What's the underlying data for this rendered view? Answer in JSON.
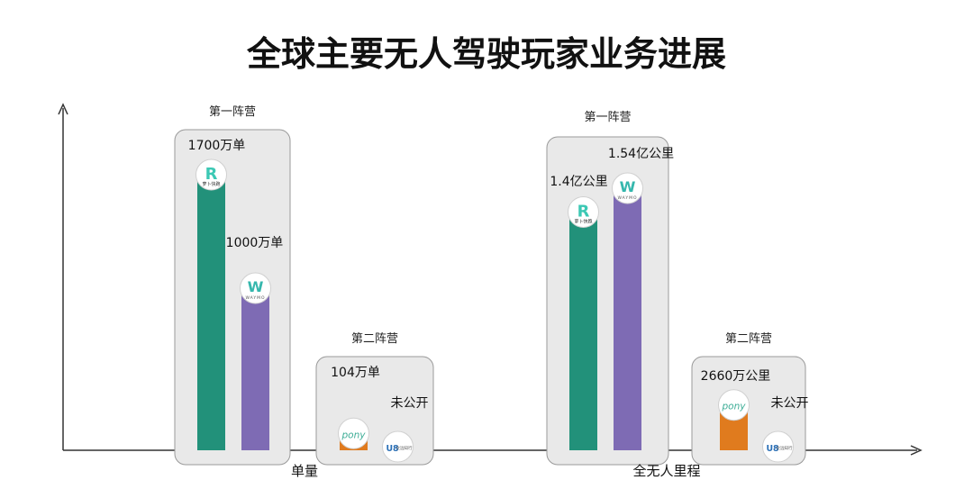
{
  "title": "全球主要无人驾驶玩家业务进展",
  "colors": {
    "green": "#22917a",
    "purple": "#7e6bb4",
    "orange": "#e07b1e",
    "blue": "#2a6fb6",
    "box_fill": "#e9e9e9",
    "box_stroke": "#9a9a9a",
    "axis": "#333333"
  },
  "chart_data": {
    "type": "bar",
    "title": "全球主要无人驾驶玩家业务进展",
    "categories": [
      "单量",
      "全无人里程"
    ],
    "groups": [
      {
        "category": "单量",
        "tiers": [
          {
            "label": "第一阵营",
            "bars": [
              {
                "company_icon": "radish-logo",
                "logo_text": "萝卜快跑",
                "value": 1700,
                "unit": "万单",
                "label": "1700万单",
                "color": "green"
              },
              {
                "company_icon": "waymo-logo",
                "logo_text": "WAYMO",
                "value": 1000,
                "unit": "万单",
                "label": "1000万单",
                "color": "purple"
              }
            ]
          },
          {
            "label": "第二阵营",
            "bars": [
              {
                "company_icon": "pony-logo",
                "logo_text": "pony",
                "value": 104,
                "unit": "万单",
                "label": "104万单",
                "color": "orange"
              },
              {
                "company_icon": "weride-logo",
                "logo_text": "文远知行",
                "value": null,
                "label": "未公开",
                "color": "blue"
              }
            ]
          }
        ]
      },
      {
        "category": "全无人里程",
        "tiers": [
          {
            "label": "第一阵营",
            "bars": [
              {
                "company_icon": "radish-logo",
                "logo_text": "萝卜快跑",
                "value": 14000,
                "unit": "万公里",
                "label": "1.4亿公里",
                "color": "green"
              },
              {
                "company_icon": "waymo-logo",
                "logo_text": "WAYMO",
                "value": 15400,
                "unit": "万公里",
                "label": "1.54亿公里",
                "color": "purple"
              }
            ]
          },
          {
            "label": "第二阵营",
            "bars": [
              {
                "company_icon": "pony-logo",
                "logo_text": "pony",
                "value": 2660,
                "unit": "万公里",
                "label": "2660万公里",
                "color": "orange"
              },
              {
                "company_icon": "weride-logo",
                "logo_text": "文远知行",
                "value": null,
                "label": "未公开",
                "color": "blue"
              }
            ]
          }
        ]
      }
    ],
    "grid": false,
    "legend": "none"
  }
}
